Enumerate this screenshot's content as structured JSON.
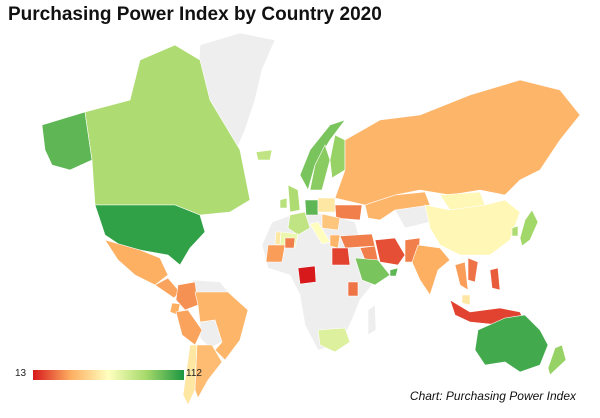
{
  "title": "Purchasing Power Index by Country 2020",
  "legend": {
    "min_label": "13",
    "max_label": "112",
    "min": 13,
    "max": 112,
    "colors": [
      "#d7191c",
      "#fdae61",
      "#ffffbf",
      "#a6d96a",
      "#1a9641"
    ]
  },
  "source": "Chart: Purchasing Power Index",
  "no_data_color": "#eeeeee",
  "chart_data": {
    "type": "map",
    "metric": "Purchasing Power Index",
    "year": 2020,
    "values": {
      "CAN": 85,
      "USA": 108,
      "ALASKA": 100,
      "MEX": 38,
      "CAM": 36,
      "COL": 33,
      "PER": 36,
      "BRA": 40,
      "CHL": 55,
      "ARG": 42,
      "ECU": 38,
      "ISL": 80,
      "NOR": 95,
      "SWE": 92,
      "FIN": 90,
      "GBR": 85,
      "IRL": 82,
      "FRA": 80,
      "ESP": 68,
      "PRT": 55,
      "DEU": 100,
      "ITA": 62,
      "POL": 55,
      "UKR": 30,
      "ROU": 45,
      "GRC": 40,
      "TUR": 30,
      "RUS": 40,
      "KAZ": 40,
      "CHN": 60,
      "MNG": 60,
      "JPN": 88,
      "KOR": 85,
      "IND": 38,
      "PAK": 30,
      "IRN": 22,
      "IRQ": 30,
      "SAU": 95,
      "ARE": 100,
      "EGY": 20,
      "MAR": 35,
      "DZA": 30,
      "NGA": 13,
      "KEN": 28,
      "ZAF": 72,
      "THA": 35,
      "VNM": 28,
      "PHL": 24,
      "MYS": 55,
      "IDN": 20,
      "AUS": 105,
      "NZL": 90
    }
  }
}
